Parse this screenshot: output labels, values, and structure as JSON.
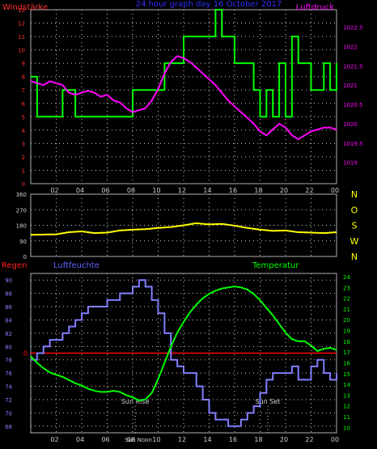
{
  "page": {
    "top_title": "24 hour graph day 16 October 2017"
  },
  "colors": {
    "background": "#000000",
    "frame": "#b0b0b0",
    "grid": "#d0d0d0",
    "wind_force": "#00ff00",
    "pressure": "#ff00ff",
    "direction": "#ffff00",
    "humidity": "#8080ff",
    "temperature": "#00ff00",
    "rain": "#ff0000",
    "left_title": "#ff3030",
    "pressure_title": "#ff00ff",
    "rain_title": "#ff2020",
    "humidity_title": "#6060ff",
    "temperature_title": "#00ff00",
    "top_title": "#3030ff",
    "compass": "#ffff00",
    "x_ticks": "#d0d0d0",
    "sun_markers": "#d0d0d0"
  },
  "chart_data": [
    {
      "type": "line",
      "panel": "wind-pressure",
      "labels": {
        "left_title": "Windstärke",
        "right_title": "Luftdruck"
      },
      "x_ticks": [
        "02",
        "04",
        "06",
        "08",
        "10",
        "12",
        "14",
        "16",
        "18",
        "20",
        "22",
        "00"
      ],
      "y_left": {
        "ticks": [
          "0",
          "1",
          "2",
          "3",
          "4",
          "5",
          "6",
          "7",
          "8",
          "9",
          "10",
          "11",
          "12",
          "13"
        ],
        "ylim": [
          0,
          13
        ]
      },
      "y_right": {
        "ticks": [
          "1019",
          "1019.5",
          "1020",
          "1020.5",
          "1021",
          "1021.5",
          "1022",
          "1022.5"
        ],
        "ylim": [
          1018.45,
          1022.95
        ]
      },
      "grid": true,
      "series": [
        {
          "key": "wind_force",
          "axis": "left",
          "step": true,
          "x": [
            0,
            0.5,
            2.5,
            3.5,
            8.0,
            10.5,
            12.0,
            14.5,
            15.0,
            16.0,
            17.0,
            17.5,
            18.0,
            18.5,
            19.0,
            19.5,
            20.0,
            20.5,
            21.0,
            21.5,
            22.0,
            23.0,
            23.5,
            24.0
          ],
          "y": [
            8,
            5,
            7,
            5,
            7,
            9,
            11,
            13,
            11,
            9,
            9,
            7,
            5,
            7,
            5,
            9,
            5,
            11,
            9,
            9,
            7,
            9,
            7,
            9
          ]
        },
        {
          "key": "pressure",
          "axis": "right",
          "x": [
            0,
            0.5,
            1,
            1.5,
            2,
            2.5,
            3,
            3.5,
            4,
            4.5,
            5,
            5.5,
            6,
            6.5,
            7,
            7.5,
            8,
            8.5,
            9,
            9.5,
            10,
            10.5,
            11,
            11.5,
            12,
            12.5,
            13,
            13.5,
            14,
            14.5,
            15,
            15.5,
            16,
            16.5,
            17,
            17.5,
            18,
            18.5,
            19,
            19.5,
            20,
            20.5,
            21,
            21.5,
            22,
            22.5,
            23,
            23.5,
            24
          ],
          "y": [
            1021.1,
            1021.05,
            1021.0,
            1021.1,
            1021.05,
            1021.0,
            1020.8,
            1020.75,
            1020.8,
            1020.85,
            1020.8,
            1020.7,
            1020.75,
            1020.6,
            1020.55,
            1020.4,
            1020.3,
            1020.35,
            1020.4,
            1020.6,
            1020.9,
            1021.3,
            1021.6,
            1021.75,
            1021.7,
            1021.6,
            1021.45,
            1021.3,
            1021.15,
            1021.0,
            1020.8,
            1020.6,
            1020.45,
            1020.3,
            1020.15,
            1020.0,
            1019.8,
            1019.7,
            1019.85,
            1020.0,
            1019.9,
            1019.7,
            1019.6,
            1019.7,
            1019.8,
            1019.85,
            1019.9,
            1019.9,
            1019.85
          ]
        }
      ]
    },
    {
      "type": "line",
      "panel": "wind-direction",
      "x_ticks": [
        "02",
        "04",
        "06",
        "08",
        "10",
        "12",
        "14",
        "16",
        "18",
        "20",
        "22",
        "00"
      ],
      "y_left": {
        "ticks": [
          "0",
          "90",
          "180",
          "270",
          "360"
        ],
        "ylim": [
          0,
          360
        ]
      },
      "compass": [
        "N",
        "W",
        "S",
        "O",
        "N"
      ],
      "grid": true,
      "series": [
        {
          "key": "direction",
          "x": [
            0,
            2,
            3,
            4,
            5,
            6,
            7,
            8,
            9,
            10,
            11,
            12,
            13,
            14,
            15,
            16,
            17,
            18,
            19,
            20,
            21,
            22,
            23,
            24
          ],
          "y": [
            125,
            128,
            140,
            145,
            135,
            138,
            150,
            155,
            158,
            165,
            170,
            180,
            192,
            185,
            188,
            178,
            165,
            155,
            148,
            150,
            140,
            138,
            135,
            140
          ]
        }
      ]
    },
    {
      "type": "line",
      "panel": "humidity-temperature",
      "labels": {
        "rain_title": "Regen",
        "humidity_title": "Luftfeuchte",
        "temperature_title": "Temperatur",
        "sun_rise": "Sun Rise",
        "sun_set": "Sun Set",
        "sun_noon": "Sun Noon",
        "rain_value": "0"
      },
      "x_ticks": [
        "02",
        "04",
        "06",
        "08",
        "10",
        "12",
        "14",
        "16",
        "18",
        "20",
        "22",
        "00"
      ],
      "y_left": {
        "ticks": [
          "68",
          "70",
          "72",
          "74",
          "76",
          "78",
          "80",
          "82",
          "84",
          "86",
          "88",
          "90"
        ],
        "ylim": [
          67,
          91
        ]
      },
      "y_right": {
        "ticks": [
          "10",
          "11",
          "12",
          "13",
          "14",
          "15",
          "16",
          "17",
          "18",
          "19",
          "20",
          "21",
          "22",
          "23",
          "24"
        ],
        "ylim": [
          9.5,
          24.3
        ]
      },
      "rain_value": 0,
      "sun": {
        "rise": 8.2,
        "set": 18.6,
        "noon": 8.7
      },
      "grid": true,
      "series": [
        {
          "key": "humidity",
          "axis": "left",
          "step": true,
          "x": [
            0,
            0.5,
            1,
            1.5,
            2,
            2.5,
            3,
            3.5,
            4,
            4.5,
            5,
            5.5,
            6,
            6.5,
            7,
            7.5,
            8,
            8.5,
            9,
            9.5,
            10,
            10.5,
            11,
            11.5,
            12,
            12.5,
            13,
            13.5,
            14,
            14.5,
            15,
            15.5,
            16,
            16.5,
            17,
            17.5,
            18,
            18.5,
            19,
            19.5,
            20,
            20.5,
            21,
            21.5,
            22,
            22.5,
            23,
            23.5,
            24
          ],
          "y": [
            78,
            79,
            80,
            81,
            81,
            82,
            83,
            84,
            85,
            86,
            86,
            86,
            87,
            87,
            88,
            88,
            89,
            90,
            89,
            87,
            85,
            82,
            78,
            77,
            76,
            76,
            74,
            72,
            70,
            69,
            69,
            68,
            68,
            69,
            70,
            71,
            73,
            75,
            76,
            76,
            76,
            77,
            75,
            75,
            77,
            78,
            76,
            75,
            76
          ]
        },
        {
          "key": "temperature",
          "axis": "right",
          "x": [
            0,
            0.5,
            1,
            1.5,
            2,
            2.5,
            3,
            3.5,
            4,
            4.5,
            5,
            5.5,
            6,
            6.5,
            7,
            7.5,
            8,
            8.5,
            9,
            9.5,
            10,
            10.5,
            11,
            11.5,
            12,
            12.5,
            13,
            13.5,
            14,
            14.5,
            15,
            15.5,
            16,
            16.5,
            17,
            17.5,
            18,
            18.5,
            19,
            19.5,
            20,
            20.5,
            21,
            21.5,
            22,
            22.5,
            23,
            23.5,
            24
          ],
          "y": [
            16.6,
            16.0,
            15.5,
            15.1,
            14.9,
            14.7,
            14.4,
            14.1,
            13.9,
            13.6,
            13.4,
            13.3,
            13.3,
            13.4,
            13.3,
            13.0,
            12.8,
            12.5,
            12.6,
            13.2,
            14.5,
            16.0,
            17.5,
            18.8,
            19.8,
            20.7,
            21.4,
            22.0,
            22.4,
            22.7,
            22.9,
            23.0,
            23.1,
            23.0,
            22.8,
            22.4,
            21.8,
            21.1,
            20.4,
            19.6,
            18.8,
            18.2,
            18.0,
            18.0,
            17.6,
            17.1,
            17.3,
            17.4,
            17.2
          ]
        }
      ]
    }
  ]
}
